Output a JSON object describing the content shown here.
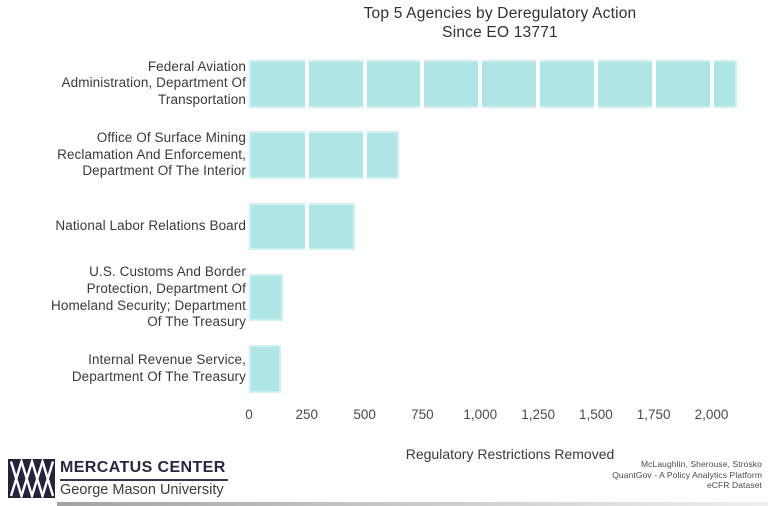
{
  "title": {
    "line1": "Top 5 Agencies by Deregulatory Action",
    "line2": "Since EO 13771"
  },
  "chart_data": {
    "type": "bar",
    "orientation": "horizontal",
    "title": "Top 5 Agencies by Deregulatory Action Since EO 13771",
    "xlabel": "Regulatory Restrictions Removed",
    "ylabel": "",
    "categories": [
      "Federal Aviation Administration, Department Of Transportation",
      "Office Of Surface Mining Reclamation And Enforcement, Department Of The Interior",
      "National Labor Relations Board",
      "U.S. Customs And Border Protection, Department Of Homeland Security; Department Of The Treasury",
      "Internal Revenue Service, Department Of The Treasury"
    ],
    "category_lines": [
      [
        "Federal Aviation",
        "Administration, Department Of",
        "Transportation"
      ],
      [
        "Office Of Surface Mining",
        "Reclamation And Enforcement,",
        "Department Of The Interior"
      ],
      [
        "National Labor Relations Board"
      ],
      [
        "U.S. Customs And Border",
        "Protection, Department Of",
        "Homeland Security; Department",
        "Of The Treasury"
      ],
      [
        "Internal Revenue Service,",
        "Department Of The Treasury"
      ]
    ],
    "values": [
      2110,
      650,
      460,
      145,
      140
    ],
    "x_ticks": [
      "0",
      "250",
      "500",
      "750",
      "1,000",
      "1,250",
      "1,500",
      "1,750",
      "2,000"
    ],
    "x_tick_values": [
      0,
      250,
      500,
      750,
      1000,
      1250,
      1500,
      1750,
      2000
    ],
    "xlim": [
      0,
      2245
    ],
    "grid": "white vertical gridlines drawn over bars at each 250 interval",
    "legend": "none",
    "bar_color": "#b0e7e6",
    "gridline_color": "#ffffff",
    "text_color": "#3a3a3a"
  },
  "footer": {
    "logo": {
      "mark": "mercatus-m-mark",
      "org": "MERCATUS CENTER",
      "suborg": "George Mason University"
    },
    "attribution": {
      "line1": "McLaughlin, Sherouse, Strosko",
      "line2": "QuantGov - A Policy Analytics Platform",
      "line3": "eCFR Dataset"
    }
  }
}
